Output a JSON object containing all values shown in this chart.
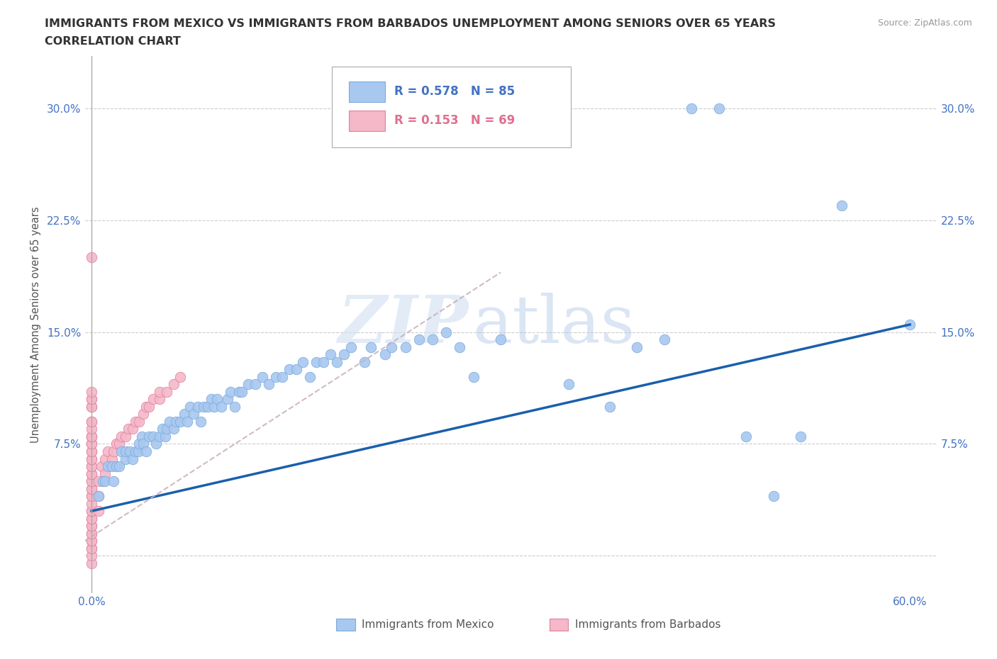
{
  "title_line1": "IMMIGRANTS FROM MEXICO VS IMMIGRANTS FROM BARBADOS UNEMPLOYMENT AMONG SENIORS OVER 65 YEARS",
  "title_line2": "CORRELATION CHART",
  "source": "Source: ZipAtlas.com",
  "ylabel": "Unemployment Among Seniors over 65 years",
  "xlim": [
    -0.005,
    0.62
  ],
  "ylim": [
    -0.025,
    0.335
  ],
  "xticks": [
    0.0,
    0.1,
    0.2,
    0.3,
    0.4,
    0.5,
    0.6
  ],
  "xticklabels": [
    "0.0%",
    "",
    "",
    "",
    "",
    "",
    "60.0%"
  ],
  "yticks": [
    0.0,
    0.075,
    0.15,
    0.225,
    0.3
  ],
  "yticklabels": [
    "",
    "7.5%",
    "15.0%",
    "22.5%",
    "30.0%"
  ],
  "legend_R_mexico": "R = 0.578",
  "legend_N_mexico": "N = 85",
  "legend_R_barbados": "R = 0.153",
  "legend_N_barbados": "N = 69",
  "watermark_zip": "ZIP",
  "watermark_atlas": "atlas",
  "mexico_color": "#a8c8f0",
  "mexico_edge": "#7aaada",
  "barbados_color": "#f4b8c8",
  "barbados_edge": "#e080a0",
  "trend_mexico_color": "#1a5fad",
  "trend_barbados_color": "#d08898",
  "mexico_scatter_x": [
    0.005,
    0.008,
    0.01,
    0.012,
    0.015,
    0.016,
    0.018,
    0.02,
    0.022,
    0.025,
    0.025,
    0.028,
    0.03,
    0.032,
    0.034,
    0.035,
    0.037,
    0.038,
    0.04,
    0.042,
    0.045,
    0.047,
    0.05,
    0.052,
    0.054,
    0.055,
    0.057,
    0.06,
    0.062,
    0.065,
    0.068,
    0.07,
    0.072,
    0.075,
    0.078,
    0.08,
    0.082,
    0.085,
    0.088,
    0.09,
    0.092,
    0.095,
    0.1,
    0.102,
    0.105,
    0.108,
    0.11,
    0.115,
    0.12,
    0.125,
    0.13,
    0.135,
    0.14,
    0.145,
    0.15,
    0.155,
    0.16,
    0.165,
    0.17,
    0.175,
    0.18,
    0.185,
    0.19,
    0.2,
    0.205,
    0.215,
    0.22,
    0.23,
    0.24,
    0.25,
    0.26,
    0.27,
    0.28,
    0.3,
    0.35,
    0.38,
    0.4,
    0.42,
    0.44,
    0.46,
    0.48,
    0.5,
    0.52,
    0.55,
    0.6
  ],
  "mexico_scatter_y": [
    0.04,
    0.05,
    0.05,
    0.06,
    0.06,
    0.05,
    0.06,
    0.06,
    0.07,
    0.065,
    0.07,
    0.07,
    0.065,
    0.07,
    0.07,
    0.075,
    0.08,
    0.075,
    0.07,
    0.08,
    0.08,
    0.075,
    0.08,
    0.085,
    0.08,
    0.085,
    0.09,
    0.085,
    0.09,
    0.09,
    0.095,
    0.09,
    0.1,
    0.095,
    0.1,
    0.09,
    0.1,
    0.1,
    0.105,
    0.1,
    0.105,
    0.1,
    0.105,
    0.11,
    0.1,
    0.11,
    0.11,
    0.115,
    0.115,
    0.12,
    0.115,
    0.12,
    0.12,
    0.125,
    0.125,
    0.13,
    0.12,
    0.13,
    0.13,
    0.135,
    0.13,
    0.135,
    0.14,
    0.13,
    0.14,
    0.135,
    0.14,
    0.14,
    0.145,
    0.145,
    0.15,
    0.14,
    0.12,
    0.145,
    0.115,
    0.1,
    0.14,
    0.145,
    0.3,
    0.3,
    0.08,
    0.04,
    0.08,
    0.235,
    0.155
  ],
  "barbados_scatter_x": [
    0.0,
    0.0,
    0.0,
    0.0,
    0.0,
    0.0,
    0.0,
    0.0,
    0.0,
    0.0,
    0.0,
    0.0,
    0.0,
    0.0,
    0.0,
    0.0,
    0.0,
    0.0,
    0.0,
    0.0,
    0.0,
    0.0,
    0.0,
    0.0,
    0.0,
    0.0,
    0.0,
    0.0,
    0.0,
    0.0,
    0.0,
    0.0,
    0.0,
    0.0,
    0.0,
    0.0,
    0.0,
    0.0,
    0.0,
    0.0,
    0.0,
    0.0,
    0.0,
    0.005,
    0.005,
    0.005,
    0.007,
    0.01,
    0.01,
    0.012,
    0.015,
    0.016,
    0.018,
    0.02,
    0.022,
    0.025,
    0.027,
    0.03,
    0.032,
    0.035,
    0.038,
    0.04,
    0.042,
    0.045,
    0.05,
    0.05,
    0.055,
    0.06,
    0.065
  ],
  "barbados_scatter_y": [
    -0.005,
    0.0,
    0.005,
    0.005,
    0.01,
    0.01,
    0.015,
    0.015,
    0.02,
    0.02,
    0.025,
    0.025,
    0.03,
    0.03,
    0.035,
    0.04,
    0.04,
    0.045,
    0.045,
    0.05,
    0.05,
    0.055,
    0.055,
    0.06,
    0.06,
    0.065,
    0.065,
    0.07,
    0.07,
    0.075,
    0.075,
    0.08,
    0.08,
    0.08,
    0.085,
    0.09,
    0.09,
    0.1,
    0.1,
    0.105,
    0.105,
    0.11,
    0.2,
    0.03,
    0.04,
    0.05,
    0.06,
    0.055,
    0.065,
    0.07,
    0.065,
    0.07,
    0.075,
    0.075,
    0.08,
    0.08,
    0.085,
    0.085,
    0.09,
    0.09,
    0.095,
    0.1,
    0.1,
    0.105,
    0.105,
    0.11,
    0.11,
    0.115,
    0.12
  ],
  "trend_mex_x0": 0.0,
  "trend_mex_x1": 0.6,
  "trend_mex_y0": 0.03,
  "trend_mex_y1": 0.155,
  "trend_bar_x0": -0.005,
  "trend_bar_x1": 0.3,
  "trend_bar_y0": 0.01,
  "trend_bar_y1": 0.19
}
